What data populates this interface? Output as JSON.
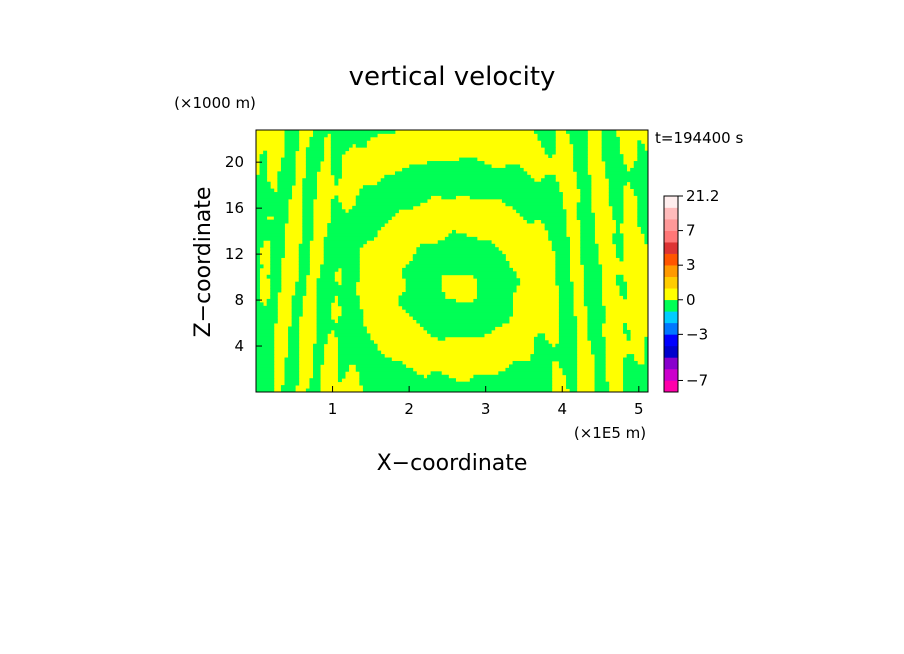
{
  "chart_data": {
    "type": "heatmap",
    "title": "vertical velocity",
    "xlabel": "X−coordinate",
    "ylabel": "Z−coordinate",
    "x_unit": "(×1E5 m)",
    "y_unit": "(×1000 m)",
    "time_label": "t=194400 s",
    "xlim": [
      0,
      5.12
    ],
    "ylim": [
      0,
      22.8
    ],
    "x_ticks": [
      {
        "value": 1,
        "label": "1"
      },
      {
        "value": 2,
        "label": "2"
      },
      {
        "value": 3,
        "label": "3"
      },
      {
        "value": 4,
        "label": "4"
      },
      {
        "value": 5,
        "label": "5"
      }
    ],
    "y_ticks": [
      {
        "value": 4,
        "label": "4"
      },
      {
        "value": 8,
        "label": "8"
      },
      {
        "value": 12,
        "label": "12"
      },
      {
        "value": 16,
        "label": "16"
      },
      {
        "value": 20,
        "label": "20"
      }
    ],
    "field_colors": {
      "negative": "#ffff00",
      "positive": "#00ff55"
    },
    "colorbar": {
      "levels": [
        -10,
        -7,
        -6,
        -5,
        -4,
        -3,
        -2,
        -1,
        0,
        1,
        2,
        3,
        4,
        5,
        7,
        10,
        14,
        21.2
      ],
      "colors": [
        "#ff00aa",
        "#cc00cc",
        "#8800cc",
        "#0000cc",
        "#0000ff",
        "#0077ff",
        "#00ccff",
        "#00ff55",
        "#ffff00",
        "#ffcc00",
        "#ff9900",
        "#ff5500",
        "#dd3333",
        "#ff7777",
        "#ff9999",
        "#ffbbbb",
        "#ffeeee"
      ],
      "tick_labels": [
        {
          "value": 21.2,
          "label": "21.2"
        },
        {
          "value": 7,
          "label": "7"
        },
        {
          "value": 3,
          "label": "3"
        },
        {
          "value": 0,
          "label": "0"
        },
        {
          "value": -3,
          "label": "−3"
        },
        {
          "value": -7,
          "label": "−7"
        }
      ]
    }
  }
}
